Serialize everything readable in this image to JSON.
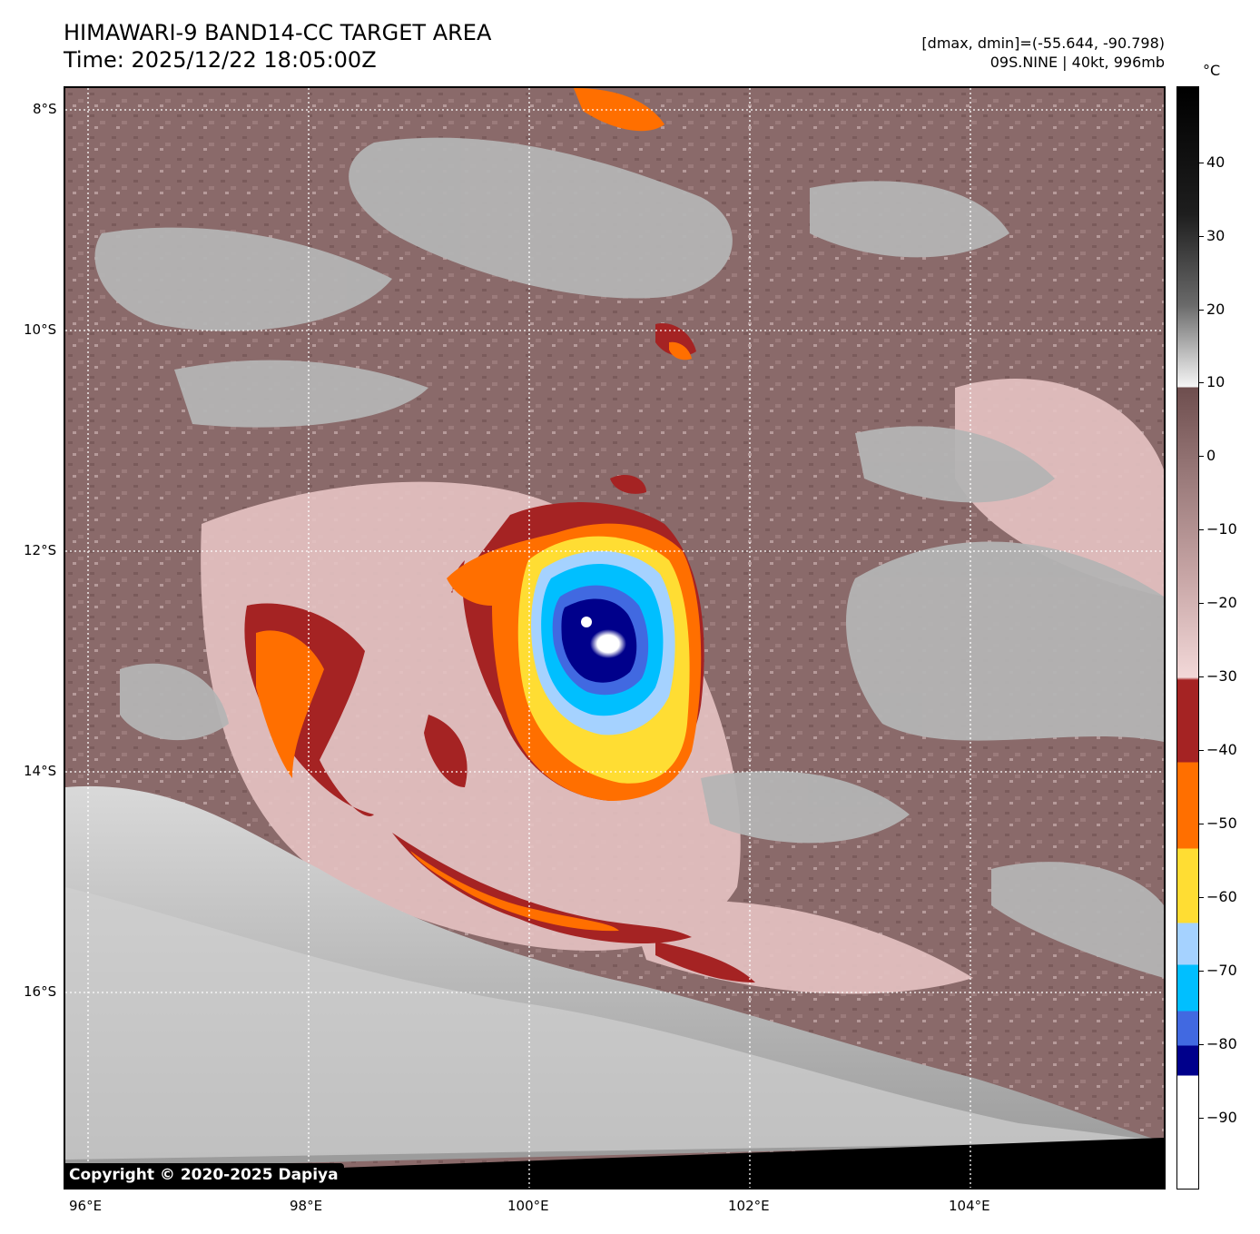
{
  "header": {
    "title": "HIMAWARI-9 BAND14-CC TARGET AREA",
    "time": "Time: 2025/12/22 18:05:00Z",
    "range": "[dmax, dmin]=(-55.644, -90.798)",
    "storm": "09S.NINE | 40kt, 996mb"
  },
  "map": {
    "copyright": "Copyright © 2020-2025 Dapiya",
    "lat_labels": [
      "8°S",
      "10°S",
      "12°S",
      "14°S",
      "16°S"
    ],
    "lon_labels": [
      "96°E",
      "98°E",
      "100°E",
      "102°E",
      "104°E"
    ],
    "lat_extent": [
      -7.8,
      -17.8
    ],
    "lon_extent": [
      95.8,
      105.8
    ],
    "gridlines": true
  },
  "colorbar": {
    "unit": "°C",
    "labels": [
      "40",
      "30",
      "20",
      "10",
      "0",
      "−10",
      "−20",
      "−30",
      "−40",
      "−50",
      "−60",
      "−70",
      "−80",
      "−90"
    ],
    "range": [
      -100,
      50
    ],
    "colors": {
      "cold_top": "#ffffff",
      "minus80": "#00008b",
      "minus75": "#4169e1",
      "minus70": "#00bfff",
      "minus65": "#a5d2ff",
      "minus60": "#ffdd33",
      "minus50": "#ff6f00",
      "minus40": "#a52323",
      "warm_brown": "#8a6a6a",
      "pink": "#f0cdcd",
      "space": "#000000"
    }
  }
}
